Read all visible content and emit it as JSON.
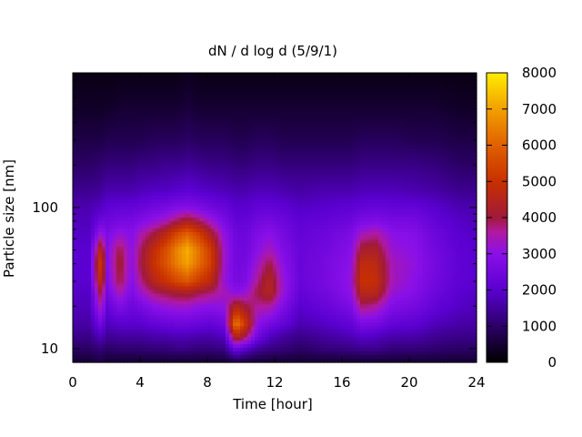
{
  "chart_data": {
    "type": "heatmap",
    "title": "dN / d log d (5/9/1)",
    "xlabel": "Time [hour]",
    "ylabel": "Particle size [nm]",
    "xlim": [
      0,
      24
    ],
    "ylim": [
      8,
      900
    ],
    "yscale": "log",
    "x_ticks": [
      0,
      4,
      8,
      12,
      16,
      20,
      24
    ],
    "y_ticks": [
      10,
      100
    ],
    "colorbar": {
      "range": [
        0,
        8000
      ],
      "ticks": [
        0,
        1000,
        2000,
        3000,
        4000,
        5000,
        6000,
        7000,
        8000
      ],
      "palette": "black-purple-red-orange-yellow"
    },
    "x_hours": [
      0,
      1,
      1.7,
      2,
      2.8,
      3.5,
      4,
      4.8,
      5.5,
      6.2,
      6.8,
      7.5,
      8.2,
      9,
      9.7,
      10.3,
      11,
      11.7,
      12.5,
      13.5,
      15,
      16.5,
      17.2,
      18,
      19,
      20.3,
      21.5,
      23,
      24
    ],
    "y_nm": [
      8,
      10,
      12,
      15,
      20,
      25,
      30,
      40,
      50,
      65,
      80,
      100,
      130,
      200,
      300,
      500,
      900
    ],
    "z_rows": [
      [
        500,
        500,
        700,
        500,
        500,
        500,
        500,
        500,
        500,
        500,
        500,
        500,
        500,
        500,
        700,
        600,
        500,
        500,
        500,
        500,
        500,
        500,
        500,
        500,
        500,
        500,
        500,
        500,
        500
      ],
      [
        1000,
        1000,
        1200,
        1000,
        1100,
        1100,
        1100,
        1200,
        1200,
        1300,
        1300,
        1200,
        1200,
        1300,
        2500,
        2000,
        1500,
        1300,
        1200,
        1000,
        1200,
        1300,
        1400,
        1400,
        1200,
        1200,
        1100,
        1000,
        1000
      ],
      [
        1300,
        1300,
        1800,
        1400,
        1500,
        1500,
        1500,
        1600,
        1600,
        1700,
        1700,
        1600,
        1600,
        1800,
        4500,
        3800,
        2400,
        1800,
        1500,
        1300,
        1500,
        1700,
        1900,
        1800,
        1600,
        1600,
        1400,
        1300,
        1300
      ],
      [
        1600,
        1600,
        2600,
        1800,
        2000,
        2000,
        2000,
        2200,
        2300,
        2400,
        2400,
        2300,
        2200,
        2500,
        6500,
        5000,
        3000,
        2600,
        2200,
        1700,
        1900,
        2200,
        2700,
        2600,
        2200,
        2100,
        1800,
        1600,
        1600
      ],
      [
        1800,
        1800,
        3600,
        2200,
        2800,
        2400,
        2600,
        3000,
        3200,
        3300,
        3300,
        3100,
        3000,
        3100,
        4500,
        4000,
        3600,
        3600,
        2800,
        2000,
        2300,
        2700,
        3800,
        3600,
        2800,
        2600,
        2200,
        1900,
        1800
      ],
      [
        1900,
        1900,
        4200,
        2500,
        3500,
        2700,
        3200,
        3800,
        4000,
        4200,
        4300,
        4000,
        3800,
        3400,
        3000,
        3200,
        4000,
        4500,
        3200,
        2200,
        2500,
        3000,
        4600,
        4600,
        3200,
        2900,
        2400,
        2000,
        1900
      ],
      [
        2000,
        2000,
        5000,
        2700,
        4000,
        2900,
        3600,
        4500,
        5000,
        5500,
        5800,
        5200,
        4700,
        3200,
        2600,
        2800,
        3700,
        4500,
        3200,
        2300,
        2600,
        3100,
        5000,
        4900,
        3400,
        3000,
        2500,
        2100,
        2000
      ],
      [
        2000,
        2000,
        5500,
        2800,
        4200,
        3000,
        3900,
        5000,
        5700,
        6500,
        7000,
        6200,
        5300,
        3300,
        2500,
        2600,
        3300,
        4000,
        3000,
        2300,
        2600,
        3000,
        4800,
        4700,
        3400,
        3100,
        2600,
        2100,
        2000
      ],
      [
        2000,
        2000,
        4800,
        2800,
        4000,
        3000,
        3800,
        4800,
        5600,
        6600,
        7200,
        6300,
        5200,
        3300,
        2500,
        2500,
        3000,
        3400,
        2800,
        2300,
        2500,
        2900,
        4200,
        4300,
        3200,
        3000,
        2500,
        2100,
        2000
      ],
      [
        1900,
        1900,
        3300,
        2700,
        3200,
        2900,
        3400,
        4000,
        4600,
        5500,
        6000,
        5300,
        4300,
        3100,
        2400,
        2400,
        2800,
        3000,
        2600,
        2200,
        2400,
        2700,
        3400,
        3600,
        3000,
        2900,
        2400,
        2000,
        1900
      ],
      [
        1800,
        1800,
        2500,
        2400,
        2600,
        2600,
        2800,
        3100,
        3400,
        3900,
        4300,
        3900,
        3300,
        2700,
        2200,
        2200,
        2500,
        2600,
        2400,
        2100,
        2200,
        2400,
        2700,
        2800,
        2600,
        2600,
        2200,
        1900,
        1800
      ],
      [
        1700,
        1700,
        1900,
        2100,
        2200,
        2200,
        2300,
        2500,
        2600,
        2800,
        2900,
        2700,
        2500,
        2300,
        2000,
        2000,
        2200,
        2200,
        2100,
        1900,
        2000,
        2100,
        2200,
        2300,
        2200,
        2200,
        2000,
        1700,
        1700
      ],
      [
        1400,
        1400,
        1500,
        1700,
        1700,
        1700,
        1800,
        1900,
        1900,
        2000,
        2100,
        2000,
        1900,
        1800,
        1700,
        1700,
        1800,
        1800,
        1700,
        1600,
        1700,
        1700,
        1800,
        1800,
        1800,
        1700,
        1600,
        1400,
        1400
      ],
      [
        1000,
        1000,
        1100,
        1200,
        1200,
        1200,
        1300,
        1300,
        1400,
        1400,
        1500,
        1400,
        1300,
        1300,
        1200,
        1200,
        1300,
        1300,
        1200,
        1200,
        1200,
        1200,
        1300,
        1300,
        1300,
        1300,
        1200,
        1000,
        1000
      ],
      [
        700,
        700,
        700,
        800,
        800,
        800,
        800,
        900,
        900,
        900,
        1000,
        900,
        900,
        900,
        800,
        800,
        900,
        900,
        800,
        800,
        800,
        800,
        900,
        900,
        900,
        800,
        800,
        700,
        700
      ],
      [
        400,
        400,
        400,
        400,
        500,
        500,
        500,
        500,
        500,
        500,
        600,
        500,
        500,
        500,
        500,
        500,
        500,
        500,
        500,
        500,
        500,
        500,
        500,
        500,
        500,
        500,
        500,
        400,
        400
      ],
      [
        200,
        200,
        200,
        200,
        200,
        200,
        200,
        200,
        200,
        200,
        300,
        200,
        200,
        200,
        200,
        200,
        200,
        200,
        200,
        200,
        200,
        200,
        200,
        200,
        200,
        200,
        200,
        200,
        200
      ]
    ]
  }
}
